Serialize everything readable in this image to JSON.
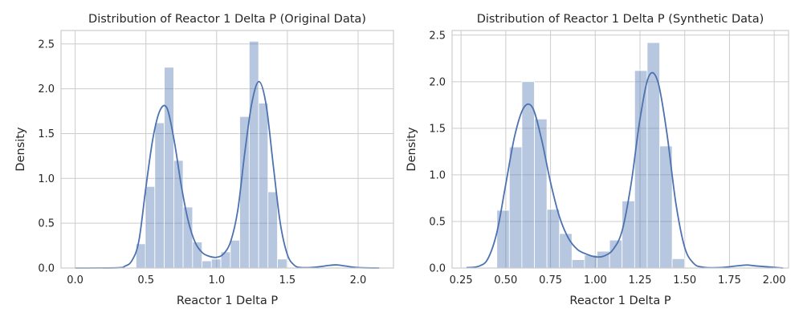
{
  "chart_data": [
    {
      "type": "bar",
      "title": "Distribution of Reactor 1 Delta P (Original Data)",
      "xlabel": "Reactor 1 Delta P",
      "ylabel": "Density",
      "xlim": [
        -0.1,
        2.25
      ],
      "ylim": [
        0,
        2.65
      ],
      "xticks": [
        0.0,
        0.5,
        1.0,
        1.5,
        2.0
      ],
      "xtick_labels": [
        "0.0",
        "0.5",
        "1.0",
        "1.5",
        "2.0"
      ],
      "yticks": [
        0.0,
        0.5,
        1.0,
        1.5,
        2.0,
        2.5
      ],
      "ytick_labels": [
        "0.0",
        "0.5",
        "1.0",
        "1.5",
        "2.0",
        "2.5"
      ],
      "grid": true,
      "bin_edges": [
        0.43,
        0.497,
        0.563,
        0.63,
        0.697,
        0.763,
        0.83,
        0.897,
        0.963,
        1.03,
        1.097,
        1.163,
        1.23,
        1.297,
        1.363,
        1.43,
        1.497
      ],
      "values": [
        0.27,
        0.91,
        1.62,
        2.24,
        1.2,
        0.68,
        0.29,
        0.08,
        0.1,
        0.18,
        0.31,
        1.69,
        2.53,
        1.84,
        0.85,
        0.1
      ],
      "kde_x": [
        0.0,
        0.3,
        0.35,
        0.4,
        0.45,
        0.5,
        0.55,
        0.6,
        0.65,
        0.7,
        0.75,
        0.8,
        0.85,
        0.9,
        0.95,
        1.0,
        1.05,
        1.1,
        1.15,
        1.2,
        1.25,
        1.3,
        1.35,
        1.4,
        1.45,
        1.5,
        1.55,
        1.6,
        1.7,
        1.8,
        1.85,
        1.9,
        2.0,
        2.15
      ],
      "kde_y": [
        0.0,
        0.003,
        0.02,
        0.08,
        0.3,
        0.9,
        1.45,
        1.76,
        1.78,
        1.42,
        0.92,
        0.52,
        0.28,
        0.17,
        0.13,
        0.12,
        0.16,
        0.3,
        0.65,
        1.3,
        1.85,
        2.08,
        1.82,
        1.15,
        0.5,
        0.15,
        0.03,
        0.005,
        0.01,
        0.03,
        0.035,
        0.025,
        0.005,
        0.0
      ]
    },
    {
      "type": "bar",
      "title": "Distribution of Reactor 1 Delta P (Synthetic Data)",
      "xlabel": "Reactor 1 Delta P",
      "ylabel": "Density",
      "xlim": [
        0.2,
        2.08
      ],
      "ylim": [
        0,
        2.55
      ],
      "xticks": [
        0.25,
        0.5,
        0.75,
        1.0,
        1.25,
        1.5,
        1.75,
        2.0
      ],
      "xtick_labels": [
        "0.25",
        "0.50",
        "0.75",
        "1.00",
        "1.25",
        "1.50",
        "1.75",
        "2.00"
      ],
      "yticks": [
        0.0,
        0.5,
        1.0,
        1.5,
        2.0,
        2.5
      ],
      "ytick_labels": [
        "0.0",
        "0.5",
        "1.0",
        "1.5",
        "2.0",
        "2.5"
      ],
      "grid": true,
      "bin_edges": [
        0.45,
        0.52,
        0.59,
        0.66,
        0.73,
        0.8,
        0.87,
        0.94,
        1.01,
        1.08,
        1.15,
        1.22,
        1.29,
        1.36,
        1.43,
        1.5
      ],
      "values": [
        0.62,
        1.3,
        2.0,
        1.6,
        0.63,
        0.37,
        0.09,
        0.14,
        0.18,
        0.3,
        0.72,
        2.12,
        2.42,
        1.31,
        0.1
      ],
      "kde_x": [
        0.28,
        0.35,
        0.4,
        0.45,
        0.5,
        0.55,
        0.6,
        0.65,
        0.7,
        0.75,
        0.8,
        0.85,
        0.9,
        0.95,
        1.0,
        1.05,
        1.1,
        1.15,
        1.2,
        1.25,
        1.3,
        1.35,
        1.4,
        1.45,
        1.5,
        1.55,
        1.6,
        1.7,
        1.8,
        1.85,
        1.9,
        2.05
      ],
      "kde_y": [
        0.003,
        0.02,
        0.1,
        0.38,
        0.9,
        1.42,
        1.72,
        1.72,
        1.38,
        0.92,
        0.55,
        0.32,
        0.2,
        0.15,
        0.12,
        0.13,
        0.2,
        0.4,
        0.9,
        1.6,
        2.06,
        2.0,
        1.45,
        0.7,
        0.22,
        0.05,
        0.01,
        0.005,
        0.025,
        0.032,
        0.022,
        0.0
      ]
    }
  ]
}
